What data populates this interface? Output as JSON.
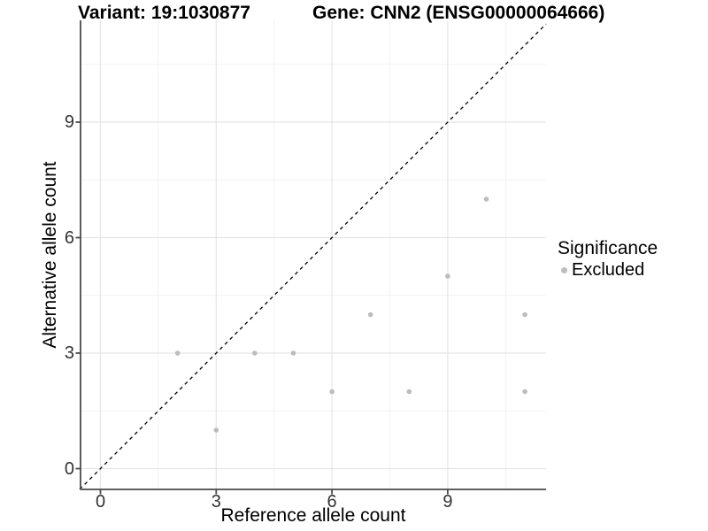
{
  "titles": {
    "variant": "Variant: 19:1030877",
    "gene": "Gene: CNN2 (ENSG00000064666)"
  },
  "chart_data": {
    "type": "scatter",
    "xlabel": "Reference allele count",
    "ylabel": "Alternative allele count",
    "xlim": [
      -0.55,
      11.55
    ],
    "ylim": [
      -0.55,
      11.6
    ],
    "x_ticks": [
      0,
      3,
      6,
      9
    ],
    "y_ticks": [
      0,
      3,
      6,
      9
    ],
    "x_minor": [
      1.5,
      4.5,
      7.5,
      10.5
    ],
    "y_minor": [
      1.5,
      4.5,
      7.5,
      10.5
    ],
    "grid": "on",
    "series": [
      {
        "name": "Excluded",
        "color": "#bdbdbd",
        "points": [
          [
            2,
            3
          ],
          [
            3,
            1
          ],
          [
            4,
            3
          ],
          [
            5,
            3
          ],
          [
            6,
            2
          ],
          [
            7,
            4
          ],
          [
            8,
            2
          ],
          [
            9,
            5
          ],
          [
            10,
            7
          ],
          [
            11,
            2
          ],
          [
            11,
            4
          ]
        ]
      }
    ],
    "identity_line": {
      "equation": "y = x",
      "style": "dashed",
      "color": "#000000"
    },
    "legend": {
      "position": "right",
      "title": "Significance",
      "entries": [
        {
          "label": "Excluded",
          "color": "#bdbdbd"
        }
      ]
    },
    "colors": {
      "major_grid": "#e5e5e5",
      "minor_grid": "#f2f2f2",
      "axis_line": "#4a4a4a",
      "tick_text": "#333333"
    }
  }
}
